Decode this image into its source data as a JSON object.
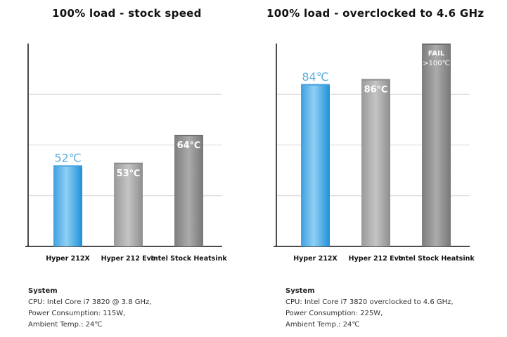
{
  "chart_data": [
    {
      "type": "bar",
      "title": "100% load - stock speed",
      "categories": [
        "Hyper 212X",
        "Hyper 212 Evo",
        "Intel Stock Heatsink"
      ],
      "values": [
        52,
        53,
        64
      ],
      "value_labels": [
        "52℃",
        "53℃",
        "64℃"
      ],
      "value_label_colors": [
        "#5aaede",
        "#ffffff",
        "#ffffff"
      ],
      "bar_colors": [
        "blue-gradient",
        "light-gray",
        "dark-gray"
      ],
      "ylim": [
        20,
        100
      ],
      "grid": true,
      "system": {
        "heading": "System",
        "lines": [
          "CPU: Intel Core i7 3820 @ 3.8 GHz,",
          "Power Consumption: 115W,",
          "Ambient Temp.: 24℃"
        ]
      }
    },
    {
      "type": "bar",
      "title": "100% load - overclocked to 4.6 GHz",
      "categories": [
        "Hyper 212X",
        "Hyper 212 Evo",
        "Intel Stock Heatsink"
      ],
      "values": [
        84,
        86,
        100
      ],
      "value_labels": [
        "84℃",
        "86℃",
        "FAIL\n>100℃"
      ],
      "value_label_colors": [
        "#5aaede",
        "#ffffff",
        "#ffffff"
      ],
      "bar_colors": [
        "blue-gradient",
        "light-gray",
        "dark-gray"
      ],
      "ylim": [
        20,
        100
      ],
      "grid": true,
      "system": {
        "heading": "System",
        "lines": [
          "CPU: Intel Core i7 3820 overclocked to 4.6 GHz,",
          "Power Consumption: 225W,",
          "Ambient Temp.: 24℃"
        ]
      }
    }
  ]
}
